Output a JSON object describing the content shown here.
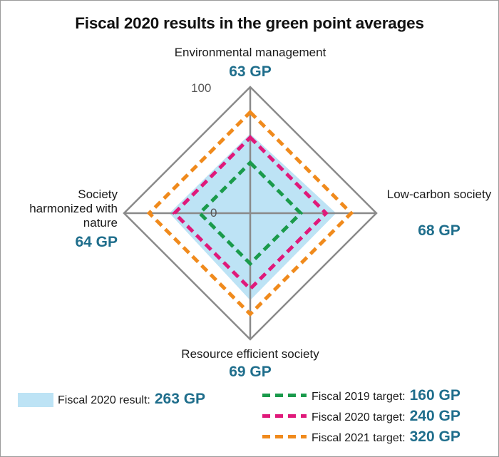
{
  "title": "Fiscal 2020 results in the green point averages",
  "chart_data": {
    "type": "radar",
    "axes": [
      {
        "label": "Environmental management",
        "value_label": "63 GP"
      },
      {
        "label": "Low-carbon society",
        "value_label": "68 GP"
      },
      {
        "label": "Resource efficient society",
        "value_label": "69 GP"
      },
      {
        "label": "Society harmonized with nature",
        "value_label": "64 GP"
      }
    ],
    "range": [
      0,
      100
    ],
    "tick_labels": [
      "0",
      "100"
    ],
    "series": [
      {
        "name": "Fiscal 2020 result",
        "total_label": "263 GP",
        "style": "filled",
        "color": "#bde3f5",
        "values": [
          63,
          68,
          69,
          64
        ]
      },
      {
        "name": "Fiscal 2019 target",
        "total_label": "160 GP",
        "style": "dashed",
        "color": "#1a9a4b",
        "values": [
          40,
          40,
          40,
          40
        ]
      },
      {
        "name": "Fiscal 2020 target",
        "total_label": "240 GP",
        "style": "dashed",
        "color": "#e0197a",
        "values": [
          60,
          60,
          60,
          60
        ]
      },
      {
        "name": "Fiscal 2021 target",
        "total_label": "320 GP",
        "style": "dashed",
        "color": "#f08a1c",
        "values": [
          80,
          80,
          80,
          80
        ]
      }
    ],
    "grid_color": "#8a8a8a"
  },
  "legend": {
    "result_text": "Fiscal 2020 result:",
    "result_value": "263 GP",
    "t2019_text": "Fiscal 2019 target:",
    "t2019_value": "160 GP",
    "t2020_text": "Fiscal 2020 target:",
    "t2020_value": "240 GP",
    "t2021_text": "Fiscal 2021 target:",
    "t2021_value": "320 GP"
  }
}
